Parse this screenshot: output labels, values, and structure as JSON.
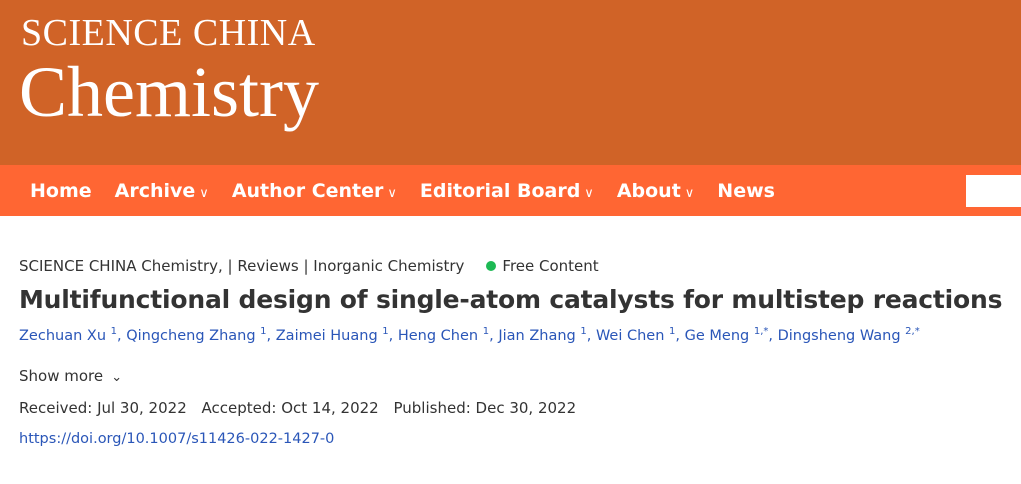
{
  "banner": {
    "line1": "SCIENCE CHINA",
    "line2": "Chemistry"
  },
  "nav": [
    {
      "label": "Home",
      "dropdown": false
    },
    {
      "label": "Archive",
      "dropdown": true
    },
    {
      "label": "Author Center",
      "dropdown": true
    },
    {
      "label": "Editorial Board",
      "dropdown": true
    },
    {
      "label": "About",
      "dropdown": true
    },
    {
      "label": "News",
      "dropdown": false
    }
  ],
  "article": {
    "meta": "SCIENCE CHINA Chemistry, | Reviews | Inorganic Chemistry",
    "free": "Free Content",
    "free_color": "#1db954",
    "title": "Multifunctional design of single-atom catalysts for multistep reactions",
    "authors": [
      {
        "name": "Zechuan Xu",
        "sup": "1"
      },
      {
        "name": "Qingcheng Zhang",
        "sup": "1"
      },
      {
        "name": "Zaimei Huang",
        "sup": "1"
      },
      {
        "name": "Heng Chen",
        "sup": "1"
      },
      {
        "name": "Jian Zhang",
        "sup": "1"
      },
      {
        "name": "Wei Chen",
        "sup": "1"
      },
      {
        "name": "Ge Meng",
        "sup": "1,*"
      },
      {
        "name": "Dingsheng Wang",
        "sup": "2,*"
      }
    ],
    "show_more": "Show more",
    "received": "Received: Jul 30, 2022",
    "accepted": "Accepted: Oct 14, 2022",
    "published": "Published: Dec 30, 2022",
    "doi": "https://doi.org/10.1007/s11426-022-1427-0"
  }
}
